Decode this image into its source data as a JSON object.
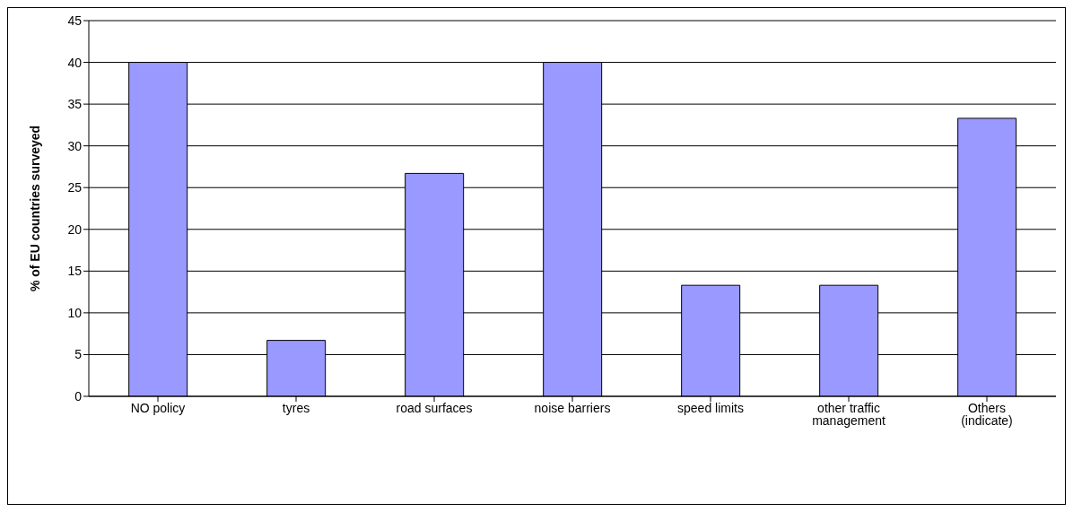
{
  "chart_data": {
    "type": "bar",
    "ylabel": "% of EU countries surveyed",
    "categories": [
      "NO policy",
      "tyres",
      "road surfaces",
      "noise barriers",
      "speed limits",
      "other traffic management",
      "Others (indicate)"
    ],
    "values": [
      40,
      6.7,
      26.7,
      40,
      13.3,
      13.3,
      33.3
    ],
    "color": "#9999ff",
    "ylim": [
      0,
      45
    ],
    "yticks": [
      0,
      5,
      10,
      15,
      20,
      25,
      30,
      35,
      40,
      45
    ],
    "grid": "y"
  }
}
